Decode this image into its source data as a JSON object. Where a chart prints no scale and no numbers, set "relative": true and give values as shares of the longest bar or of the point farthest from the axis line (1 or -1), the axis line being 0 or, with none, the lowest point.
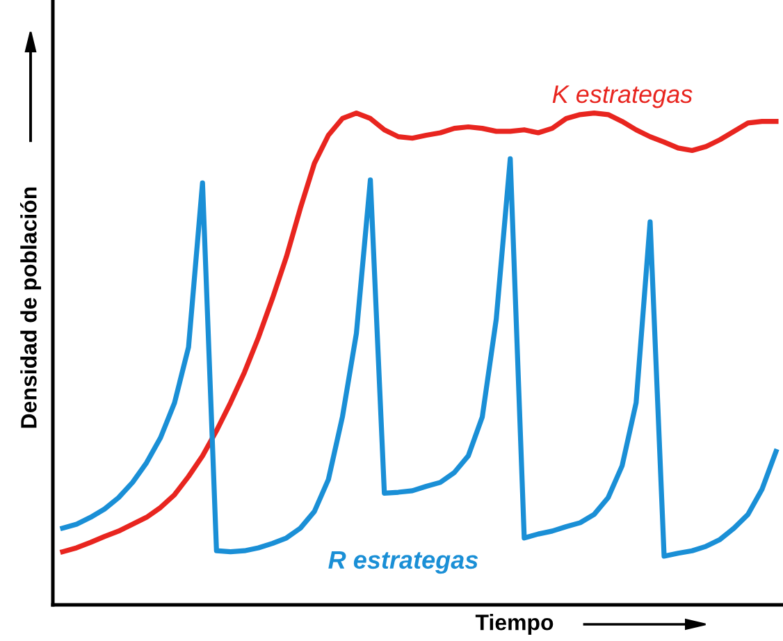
{
  "chart_data": {
    "type": "line",
    "relative": true,
    "xlabel": "Tiempo",
    "ylabel": "Densidad de población",
    "categories": [
      null,
      null,
      null,
      null,
      null,
      null,
      null,
      null,
      null,
      null,
      null,
      null,
      null,
      null,
      null,
      null,
      null,
      null,
      null,
      null,
      null,
      null,
      null,
      null,
      null,
      null,
      null,
      null,
      null,
      null,
      null,
      null,
      null,
      null,
      null,
      null,
      null,
      null,
      null,
      null,
      null,
      null,
      null,
      null,
      null,
      null,
      null,
      null,
      null,
      null,
      null,
      null
    ],
    "legend": false,
    "series": [
      {
        "name": "K estrategas",
        "color": "#e8251f",
        "values": [
          0.108,
          0.116,
          0.127,
          0.139,
          0.15,
          0.164,
          0.178,
          0.198,
          0.224,
          0.261,
          0.303,
          0.354,
          0.411,
          0.473,
          0.544,
          0.623,
          0.708,
          0.807,
          0.898,
          0.955,
          0.989,
          1.0,
          0.989,
          0.966,
          0.952,
          0.949,
          0.955,
          0.96,
          0.969,
          0.972,
          0.969,
          0.963,
          0.963,
          0.966,
          0.96,
          0.969,
          0.989,
          0.997,
          1.0,
          0.997,
          0.983,
          0.966,
          0.952,
          0.941,
          0.929,
          0.924,
          0.932,
          0.946,
          0.963,
          0.98,
          0.983,
          0.983
        ]
      },
      {
        "name": "R estrategas",
        "color": "#1a8fd6",
        "values": [
          0.156,
          0.164,
          0.178,
          0.195,
          0.218,
          0.249,
          0.289,
          0.34,
          0.411,
          0.524,
          0.858,
          0.11,
          0.108,
          0.11,
          0.116,
          0.125,
          0.136,
          0.156,
          0.19,
          0.255,
          0.382,
          0.552,
          0.864,
          0.227,
          0.229,
          0.232,
          0.241,
          0.249,
          0.269,
          0.303,
          0.382,
          0.581,
          0.907,
          0.136,
          0.144,
          0.15,
          0.159,
          0.167,
          0.184,
          0.218,
          0.283,
          0.411,
          0.779,
          0.099,
          0.105,
          0.11,
          0.119,
          0.133,
          0.156,
          0.184,
          0.235,
          0.312
        ]
      }
    ]
  }
}
